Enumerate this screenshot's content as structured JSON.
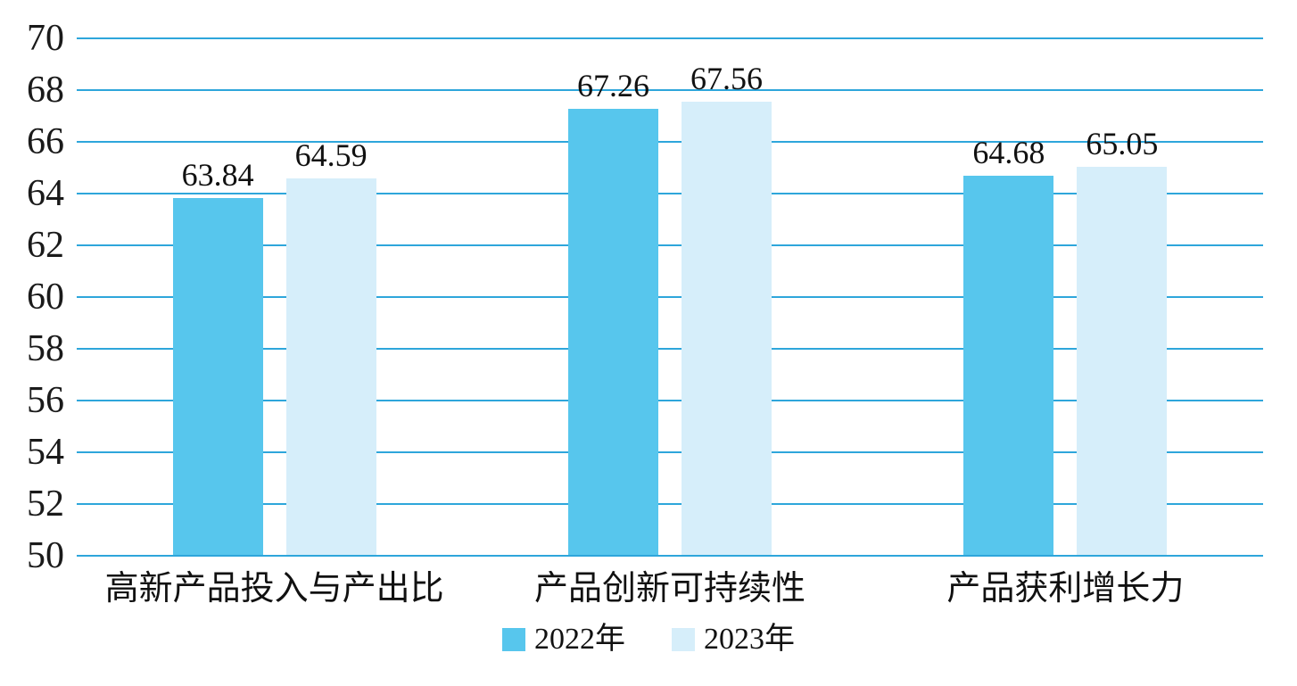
{
  "chart_data": {
    "type": "bar",
    "title": "",
    "xlabel": "",
    "ylabel": "",
    "categories": [
      "高新产品投入与产出比",
      "产品创新可持续性",
      "产品获利增长力"
    ],
    "series": [
      {
        "name": "2022年",
        "color": "#57C6ED",
        "values": [
          63.84,
          67.26,
          64.68
        ]
      },
      {
        "name": "2023年",
        "color": "#D6EEFA",
        "values": [
          64.59,
          67.56,
          65.05
        ]
      }
    ],
    "value_labels": [
      [
        "63.84",
        "67.26",
        "64.68"
      ],
      [
        "64.59",
        "67.56",
        "65.05"
      ]
    ],
    "ylim": [
      50,
      70
    ],
    "yticks": [
      "50",
      "52",
      "54",
      "56",
      "58",
      "60",
      "62",
      "64",
      "66",
      "68",
      "70"
    ],
    "grid": true,
    "gridline_color": "#2EA6DB",
    "legend_position": "bottom"
  }
}
